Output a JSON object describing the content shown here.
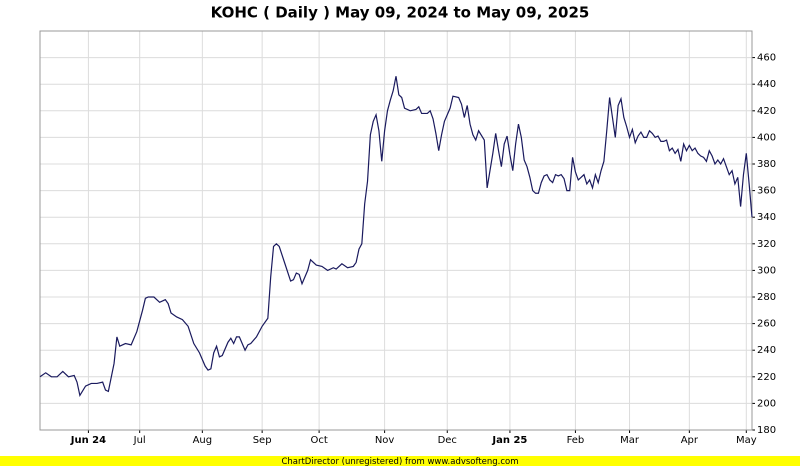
{
  "chart_data": {
    "type": "line",
    "title": "KOHC ( Daily ) May 09, 2024 to May 09, 2025",
    "x": [
      0,
      2,
      4,
      6,
      8,
      10,
      12,
      13,
      14,
      16,
      18,
      20,
      22,
      23,
      24,
      26,
      27,
      28,
      30,
      32,
      34,
      36,
      37,
      38,
      40,
      42,
      44,
      45,
      46,
      48,
      50,
      52,
      54,
      56,
      58,
      59,
      60,
      61,
      62,
      63,
      64,
      66,
      67,
      68,
      69,
      70,
      72,
      73,
      74,
      76,
      78,
      80,
      81,
      82,
      83,
      84,
      86,
      88,
      89,
      90,
      91,
      92,
      94,
      95,
      97,
      99,
      101,
      103,
      104,
      106,
      108,
      110,
      111,
      112,
      113,
      114,
      115,
      116,
      117,
      118,
      119,
      120,
      121,
      122,
      123,
      124,
      125,
      126,
      127,
      128,
      130,
      132,
      133,
      134,
      136,
      137,
      138,
      139,
      140,
      141,
      142,
      144,
      145,
      147,
      148,
      149,
      150,
      151,
      152,
      153,
      154,
      156,
      157,
      158,
      159,
      160,
      161,
      162,
      163,
      164,
      165,
      166,
      167,
      168,
      169,
      170,
      171,
      172,
      173,
      174,
      175,
      176,
      177,
      178,
      179,
      180,
      181,
      182,
      183,
      184,
      185,
      186,
      187,
      188,
      189,
      190,
      191,
      192,
      193,
      194,
      195,
      196,
      197,
      198,
      199,
      200,
      201,
      202,
      203,
      204,
      205,
      206,
      207,
      208,
      209,
      210,
      211,
      212,
      213,
      214,
      215,
      216,
      217,
      218,
      219,
      220,
      221,
      222,
      223,
      224,
      225,
      226,
      227,
      228,
      229,
      230,
      231,
      232,
      233,
      234,
      235,
      236,
      237,
      238,
      239,
      240,
      241,
      242,
      243,
      244,
      245,
      246,
      247,
      248,
      249,
      250
    ],
    "series": [
      {
        "color": "#1a1a5e",
        "values": [
          220,
          223,
          220,
          220,
          224,
          220,
          221,
          216,
          206,
          213,
          215,
          215,
          216,
          210,
          209,
          230,
          250,
          243,
          245,
          244,
          254,
          270,
          279,
          280,
          280,
          276,
          278,
          275,
          268,
          265,
          263,
          258,
          245,
          238,
          228,
          225,
          226,
          238,
          243,
          235,
          236,
          246,
          249,
          245,
          250,
          250,
          240,
          244,
          245,
          250,
          258,
          264,
          295,
          318,
          320,
          318,
          305,
          292,
          293,
          298,
          297,
          290,
          300,
          308,
          304,
          303,
          300,
          302,
          301,
          305,
          302,
          303,
          306,
          316,
          320,
          350,
          367,
          402,
          412,
          417,
          405,
          382,
          405,
          420,
          428,
          435,
          446,
          432,
          430,
          422,
          420,
          421,
          423,
          418,
          418,
          420,
          414,
          403,
          390,
          402,
          412,
          422,
          431,
          430,
          425,
          415,
          424,
          410,
          402,
          398,
          405,
          398,
          362,
          375,
          388,
          403,
          390,
          378,
          395,
          401,
          387,
          375,
          395,
          410,
          400,
          383,
          378,
          370,
          360,
          358,
          358,
          366,
          371,
          372,
          368,
          366,
          372,
          371,
          372,
          369,
          360,
          360,
          385,
          374,
          368,
          370,
          372,
          365,
          368,
          362,
          372,
          366,
          375,
          382,
          405,
          430,
          415,
          400,
          424,
          429,
          415,
          408,
          400,
          406,
          396,
          401,
          404,
          400,
          400,
          405,
          403,
          400,
          401,
          397,
          397,
          398,
          390,
          392,
          388,
          391,
          382,
          395,
          390,
          394,
          390,
          392,
          388,
          386,
          385,
          382,
          390,
          386,
          380,
          383,
          380,
          384,
          378,
          372,
          375,
          365,
          370,
          348,
          372,
          388,
          365,
          340
        ]
      }
    ],
    "xlim": [
      0,
      250
    ],
    "xticks": [
      {
        "value": 17,
        "label": "Jun 24"
      },
      {
        "value": 35,
        "label": "Jul"
      },
      {
        "value": 57,
        "label": "Aug"
      },
      {
        "value": 78,
        "label": "Sep"
      },
      {
        "value": 98,
        "label": "Oct"
      },
      {
        "value": 121,
        "label": "Nov"
      },
      {
        "value": 143,
        "label": "Dec"
      },
      {
        "value": 165,
        "label": "Jan 25"
      },
      {
        "value": 188,
        "label": "Feb"
      },
      {
        "value": 207,
        "label": "Mar"
      },
      {
        "value": 228,
        "label": "Apr"
      },
      {
        "value": 248,
        "label": "May"
      }
    ],
    "ylim": [
      180,
      480
    ],
    "yticks": [
      180,
      200,
      220,
      240,
      260,
      280,
      300,
      320,
      340,
      360,
      380,
      400,
      420,
      440,
      460
    ],
    "grid": true
  },
  "footer": "ChartDirector (unregistered) from www.advsofteng.com"
}
